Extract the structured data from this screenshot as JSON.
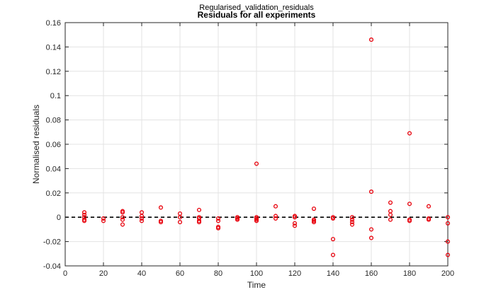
{
  "chart_data": {
    "type": "scatter",
    "subtitle": "Regularised_validation_residuals",
    "title": "Residuals for all experiments",
    "xlabel": "Time",
    "ylabel": "Normalised residuals",
    "xlim": [
      0,
      200
    ],
    "ylim": [
      -0.04,
      0.16
    ],
    "x_ticks": [
      0,
      20,
      40,
      60,
      80,
      100,
      120,
      140,
      160,
      180,
      200
    ],
    "y_ticks": [
      -0.04,
      -0.02,
      0,
      0.02,
      0.04,
      0.06,
      0.08,
      0.1,
      0.12,
      0.14,
      0.16
    ],
    "x_tick_labels": [
      "0",
      "20",
      "40",
      "60",
      "80",
      "100",
      "120",
      "140",
      "160",
      "180",
      "200"
    ],
    "y_tick_labels": [
      "-0.04",
      "-0.02",
      "0",
      "0.02",
      "0.04",
      "0.06",
      "0.08",
      "0.1",
      "0.12",
      "0.14",
      "0.16"
    ],
    "grid": true,
    "reference_line": {
      "y": 0,
      "style": "dashed",
      "color": "#000000"
    },
    "marker_color": "#e8000b",
    "series": [
      {
        "points": [
          [
            10,
            0.004
          ],
          [
            10,
            0.002
          ],
          [
            10,
            0.0
          ],
          [
            10,
            -0.002
          ],
          [
            10,
            -0.003
          ],
          [
            20,
            -0.001
          ],
          [
            20,
            -0.003
          ],
          [
            30,
            0.005
          ],
          [
            30,
            0.004
          ],
          [
            30,
            0.0
          ],
          [
            30,
            -0.002
          ],
          [
            30,
            -0.006
          ],
          [
            40,
            0.004
          ],
          [
            40,
            0.001
          ],
          [
            40,
            -0.001
          ],
          [
            40,
            -0.003
          ],
          [
            50,
            0.008
          ],
          [
            50,
            -0.003
          ],
          [
            50,
            -0.004
          ],
          [
            60,
            0.003
          ],
          [
            60,
            0.0
          ],
          [
            60,
            -0.004
          ],
          [
            70,
            0.006
          ],
          [
            70,
            0.0
          ],
          [
            70,
            -0.001
          ],
          [
            70,
            -0.003
          ],
          [
            70,
            -0.004
          ],
          [
            80,
            -0.001
          ],
          [
            80,
            -0.003
          ],
          [
            80,
            -0.008
          ],
          [
            80,
            -0.009
          ],
          [
            90,
            0.0
          ],
          [
            90,
            -0.001
          ],
          [
            90,
            -0.002
          ],
          [
            100,
            0.044
          ],
          [
            100,
            0.0
          ],
          [
            100,
            -0.001
          ],
          [
            100,
            -0.002
          ],
          [
            100,
            -0.003
          ],
          [
            110,
            0.009
          ],
          [
            110,
            0.001
          ],
          [
            110,
            -0.001
          ],
          [
            120,
            0.001
          ],
          [
            120,
            0.0
          ],
          [
            120,
            -0.005
          ],
          [
            120,
            -0.007
          ],
          [
            130,
            0.007
          ],
          [
            130,
            -0.002
          ],
          [
            130,
            -0.003
          ],
          [
            130,
            -0.004
          ],
          [
            140,
            0.0
          ],
          [
            140,
            -0.001
          ],
          [
            140,
            -0.018
          ],
          [
            140,
            -0.031
          ],
          [
            150,
            0.0
          ],
          [
            150,
            -0.002
          ],
          [
            150,
            -0.004
          ],
          [
            150,
            -0.006
          ],
          [
            160,
            0.146
          ],
          [
            160,
            0.021
          ],
          [
            160,
            -0.01
          ],
          [
            160,
            -0.017
          ],
          [
            170,
            0.012
          ],
          [
            170,
            0.005
          ],
          [
            170,
            0.002
          ],
          [
            170,
            -0.002
          ],
          [
            180,
            0.069
          ],
          [
            180,
            0.011
          ],
          [
            180,
            -0.002
          ],
          [
            180,
            -0.003
          ],
          [
            190,
            0.009
          ],
          [
            190,
            -0.001
          ],
          [
            190,
            -0.002
          ],
          [
            200,
            0.0
          ],
          [
            200,
            -0.005
          ],
          [
            200,
            -0.02
          ],
          [
            200,
            -0.031
          ]
        ]
      }
    ]
  }
}
